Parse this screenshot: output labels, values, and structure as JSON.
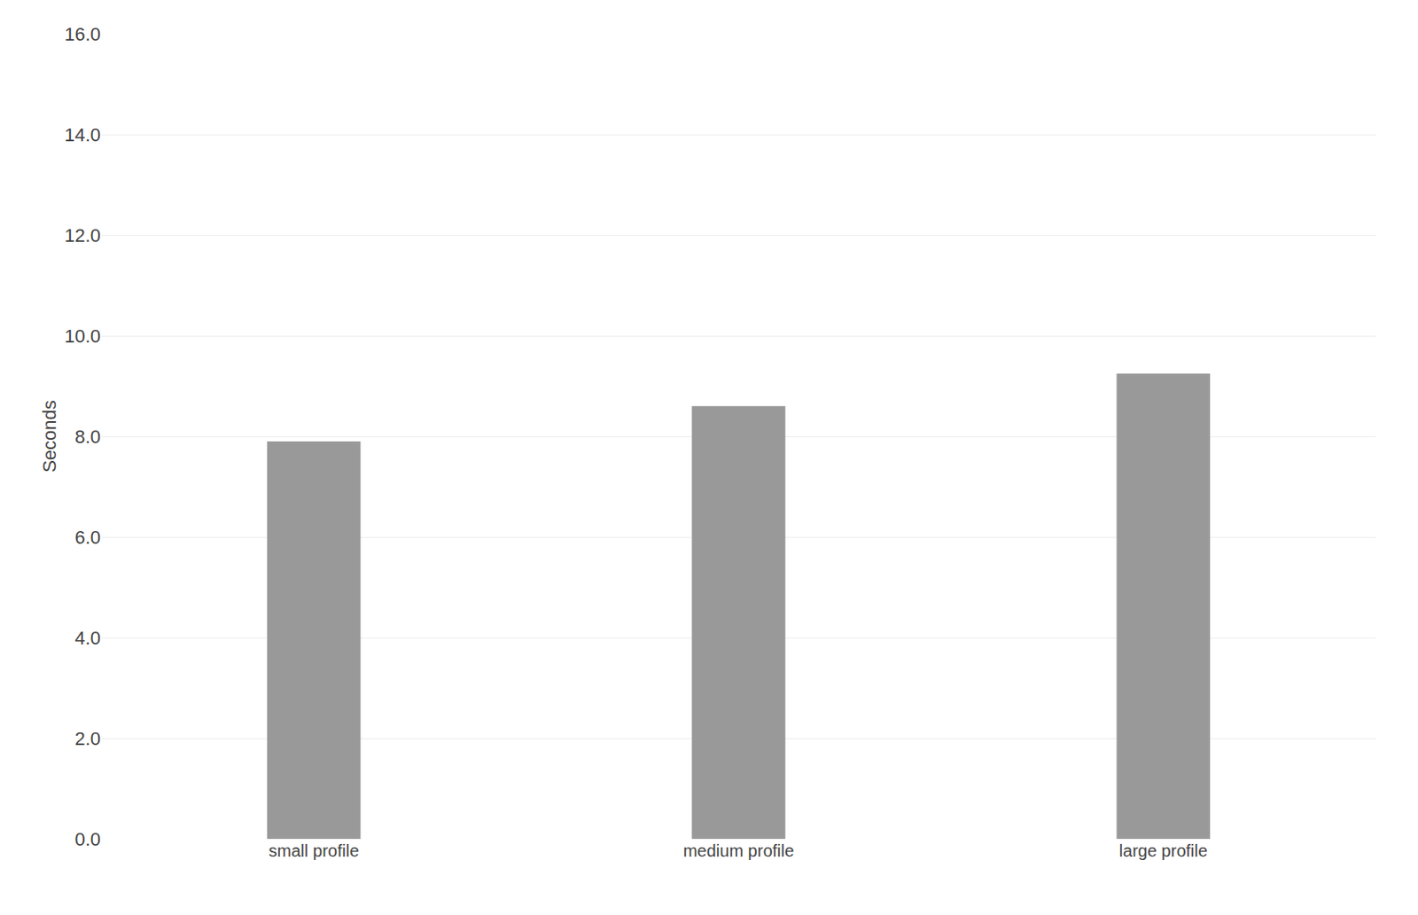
{
  "chart_data": {
    "type": "bar",
    "categories": [
      "small profile",
      "medium profile",
      "large profile"
    ],
    "values": [
      7.9,
      8.6,
      9.25
    ],
    "color": "#999999",
    "ylabel": "Seconds",
    "ylim": [
      0,
      16
    ],
    "yticks": [
      {
        "value": 0,
        "label": "0.0"
      },
      {
        "value": 2,
        "label": "2.0"
      },
      {
        "value": 4,
        "label": "4.0"
      },
      {
        "value": 6,
        "label": "6.0"
      },
      {
        "value": 8,
        "label": "8.0"
      },
      {
        "value": 10,
        "label": "10.0"
      },
      {
        "value": 12,
        "label": "12.0"
      },
      {
        "value": 14,
        "label": "14.0"
      },
      {
        "value": 16,
        "label": "16.0"
      }
    ],
    "grid": true
  }
}
